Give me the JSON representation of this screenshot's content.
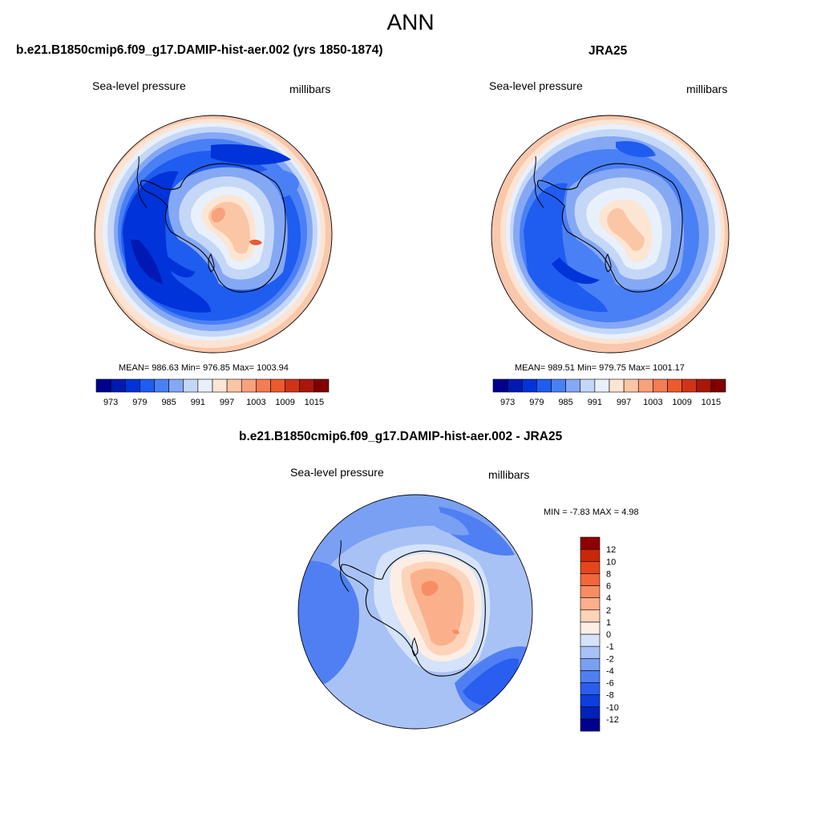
{
  "main_title": "ANN",
  "panels": [
    {
      "title": "b.e21.B1850cmip6.f09_g17.DAMIP-hist-aer.002 (yrs 1850-1874)",
      "left_label": "Sea-level pressure",
      "right_label": "millibars",
      "stats": "MEAN= 986.63  Min= 976.85  Max= 1003.94"
    },
    {
      "title": "JRA25",
      "left_label": "Sea-level pressure",
      "right_label": "millibars",
      "stats": "MEAN= 989.51  Min= 979.75  Max= 1001.17"
    },
    {
      "title": "b.e21.B1850cmip6.f09_g17.DAMIP-hist-aer.002 - JRA25",
      "left_label": "Sea-level pressure",
      "right_label": "millibars",
      "stats": "MIN =  -7.83 MAX =   4.98"
    }
  ],
  "colorbar_abs": {
    "colors": [
      "#00008f",
      "#0019b3",
      "#0033d9",
      "#1f5cf0",
      "#4a80f5",
      "#85a8f5",
      "#c4d7f7",
      "#e8f0fb",
      "#fde5d3",
      "#fbc6a6",
      "#f8a27c",
      "#f47c53",
      "#ec5a2f",
      "#cf3418",
      "#a8170a",
      "#800000"
    ],
    "tick_labels": [
      "973",
      "979",
      "985",
      "991",
      "997",
      "1003",
      "1009",
      "1015"
    ]
  },
  "colorbar_diff": {
    "colors": [
      "#00008f",
      "#0022b8",
      "#0d3ede",
      "#2a5ef0",
      "#4f7ff2",
      "#7aa0f3",
      "#a9c2f5",
      "#d4e3f9",
      "#fdeee5",
      "#fdd3ba",
      "#fbb08c",
      "#f88d63",
      "#f2663a",
      "#e6461c",
      "#c82708",
      "#8f0000"
    ],
    "tick_labels": [
      "12",
      "10",
      "8",
      "6",
      "4",
      "2",
      "1",
      "0",
      "-1",
      "-2",
      "-4",
      "-6",
      "-8",
      "-10",
      "-12"
    ]
  }
}
